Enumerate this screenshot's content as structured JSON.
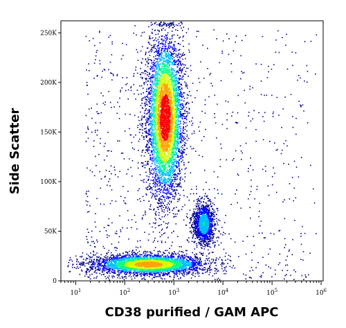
{
  "chart_data": {
    "type": "scatter",
    "subtype": "flow-cytometry-density-dot-plot",
    "xlabel": "CD38 purified / GAM APC",
    "ylabel": "Side Scatter",
    "x_scale": "log",
    "x_range": [
      5,
      1100000
    ],
    "x_ticks": [
      {
        "value": 10,
        "base": "10",
        "exp": "1"
      },
      {
        "value": 100,
        "base": "10",
        "exp": "2"
      },
      {
        "value": 1000,
        "base": "10",
        "exp": "3"
      },
      {
        "value": 10000,
        "base": "10",
        "exp": "4"
      },
      {
        "value": 100000,
        "base": "10",
        "exp": "5"
      },
      {
        "value": 1000000,
        "base": "10",
        "exp": "6"
      }
    ],
    "y_scale": "linear",
    "y_range": [
      0,
      262144
    ],
    "y_ticks": [
      {
        "value": 0,
        "label": "0"
      },
      {
        "value": 50000,
        "label": "50K"
      },
      {
        "value": 100000,
        "label": "100K"
      },
      {
        "value": 150000,
        "label": "150K"
      },
      {
        "value": 200000,
        "label": "200K"
      },
      {
        "value": 250000,
        "label": "250K"
      }
    ],
    "grid": false,
    "legend": "none",
    "color_scale": [
      "#00008b",
      "#0000ff",
      "#00bfff",
      "#00ff80",
      "#d4ff00",
      "#ffa500",
      "#ff0000"
    ],
    "populations": [
      {
        "center_x": 650,
        "center_y": 165000,
        "spread_log_x": 0.17,
        "spread_y": 38000,
        "relative_density": 1.0
      },
      {
        "center_x": 4000,
        "center_y": 58000,
        "spread_log_x": 0.1,
        "spread_y": 10000,
        "relative_density": 0.35
      },
      {
        "center_x": 300,
        "center_y": 17000,
        "spread_log_x": 0.55,
        "spread_y": 5000,
        "relative_density": 0.75
      }
    ]
  }
}
